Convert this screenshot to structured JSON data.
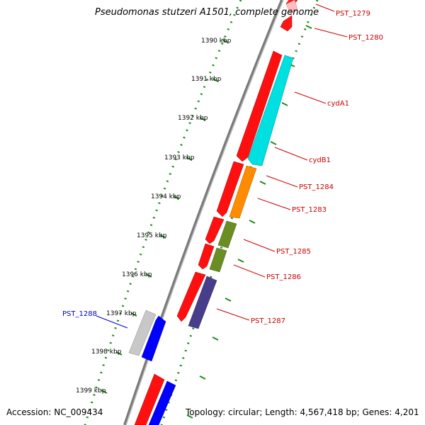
{
  "title": "Pseudomonas stutzeri A1501, complete genome",
  "footer": {
    "accession": "Accession: NC_009434",
    "topology": "Topology: circular; Length: 4,567,418 bp; Genes: 4,201"
  },
  "colors": {
    "backbone": "#808080",
    "dotted_ring": "#1a8a1a",
    "forward_gene": "#ff0000",
    "selected_gene": "#0000ff",
    "gene_label_default": "#cc0000",
    "gene_label_selected": "#0000cc",
    "cyan": "#00e5e5",
    "orange": "#ff8c00",
    "olive": "#6b8e23",
    "purple": "#483d8b",
    "grey": "#c0c0c0"
  },
  "scale_ticks": [
    {
      "label": "1390 kbp"
    },
    {
      "label": "1391 kbp"
    },
    {
      "label": "1392 kbp"
    },
    {
      "label": "1393 kbp"
    },
    {
      "label": "1394 kbp"
    },
    {
      "label": "1395 kbp"
    },
    {
      "label": "1396 kbp"
    },
    {
      "label": "1397 kbp"
    },
    {
      "label": "1398 kbp"
    },
    {
      "label": "1399 kbp"
    }
  ],
  "gene_labels": [
    {
      "label": "PST_1279",
      "selected": false
    },
    {
      "label": "PST_1280",
      "selected": false
    },
    {
      "label": "cydA1",
      "selected": false
    },
    {
      "label": "cydB1",
      "selected": false
    },
    {
      "label": "PST_1284",
      "selected": false
    },
    {
      "label": "PST_1283",
      "selected": false
    },
    {
      "label": "PST_1285",
      "selected": false
    },
    {
      "label": "PST_1286",
      "selected": false
    },
    {
      "label": "PST_1287",
      "selected": false
    },
    {
      "label": "PST_1288",
      "selected": true
    }
  ]
}
